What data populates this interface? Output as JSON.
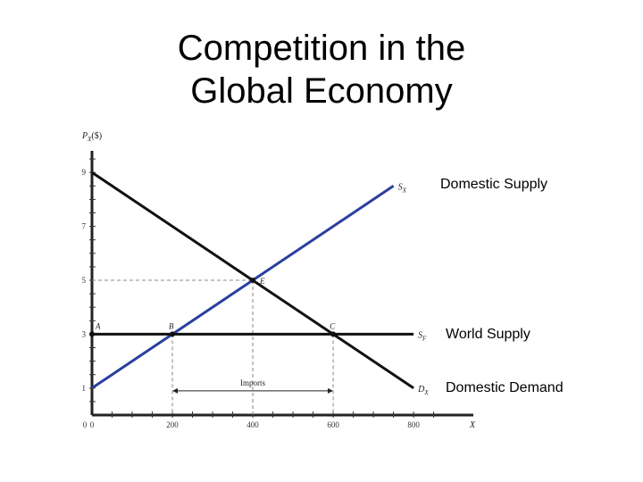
{
  "title": {
    "line1": "Competition in the",
    "line2": "Global Economy"
  },
  "callouts": {
    "domestic_supply": "Domestic Supply",
    "world_supply": "World Supply",
    "domestic_demand": "Domestic Demand"
  },
  "chart_data": {
    "type": "line",
    "ylabel": "PX($)",
    "xlabel": "X",
    "xlim": [
      0,
      850
    ],
    "ylim": [
      0,
      10
    ],
    "x_ticks": [
      "0",
      "200",
      "400",
      "600",
      "800"
    ],
    "y_ticks": [
      "1",
      "3",
      "5",
      "7",
      "9"
    ],
    "series": [
      {
        "name": "SX",
        "color": "#2b3f9e",
        "points": [
          [
            0,
            1
          ],
          [
            750,
            8.5
          ]
        ]
      },
      {
        "name": "DX",
        "color": "#111111",
        "points": [
          [
            0,
            9
          ],
          [
            800,
            1
          ]
        ]
      },
      {
        "name": "SF",
        "color": "#111111",
        "points": [
          [
            0,
            3
          ],
          [
            800,
            3
          ]
        ]
      }
    ],
    "points": [
      {
        "label": "A",
        "x": 0,
        "y": 3
      },
      {
        "label": "B",
        "x": 200,
        "y": 3
      },
      {
        "label": "C",
        "x": 600,
        "y": 3
      },
      {
        "label": "E",
        "x": 400,
        "y": 5
      }
    ],
    "annotations": {
      "imports": {
        "label": "Imports",
        "x_from": 200,
        "x_to": 600
      }
    }
  }
}
